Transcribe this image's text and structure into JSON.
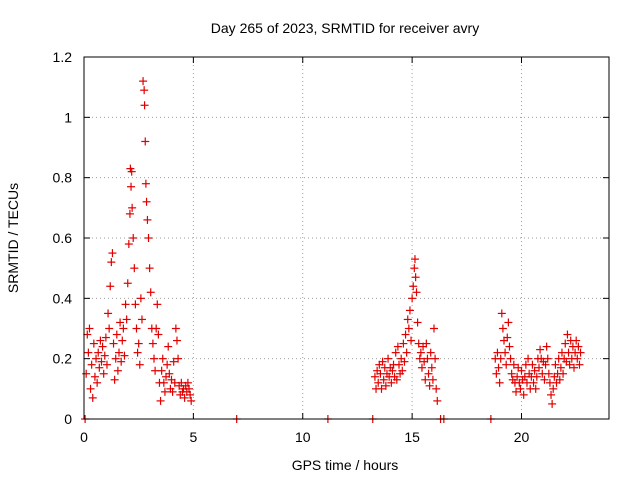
{
  "chart_data": {
    "type": "scatter",
    "title": "Day 265 of 2023, SRMTID for receiver avry",
    "xlabel": "GPS time / hours",
    "ylabel": "SRMTID / TECUs",
    "xlim": [
      0,
      24
    ],
    "ylim": [
      0,
      1.2
    ],
    "x_ticks": [
      {
        "value": 0,
        "label": "0"
      },
      {
        "value": 5,
        "label": "5"
      },
      {
        "value": 10,
        "label": "10"
      },
      {
        "value": 15,
        "label": "15"
      },
      {
        "value": 20,
        "label": "20"
      }
    ],
    "y_ticks": [
      {
        "value": 0,
        "label": "0"
      },
      {
        "value": 0.2,
        "label": "0.2"
      },
      {
        "value": 0.4,
        "label": "0.4"
      },
      {
        "value": 0.6,
        "label": "0.6"
      },
      {
        "value": 0.8,
        "label": "0.8"
      },
      {
        "value": 1.0,
        "label": "1"
      },
      {
        "value": 1.2,
        "label": "1.2"
      }
    ],
    "grid": true,
    "marker": "+",
    "marker_color": "#e00000",
    "series": [
      {
        "name": "SRMTID",
        "points": [
          [
            0.05,
            0.0
          ],
          [
            0.1,
            0.15
          ],
          [
            0.15,
            0.28
          ],
          [
            0.2,
            0.22
          ],
          [
            0.25,
            0.3
          ],
          [
            0.3,
            0.1
          ],
          [
            0.35,
            0.18
          ],
          [
            0.4,
            0.07
          ],
          [
            0.45,
            0.25
          ],
          [
            0.5,
            0.14
          ],
          [
            0.55,
            0.2
          ],
          [
            0.6,
            0.12
          ],
          [
            0.65,
            0.22
          ],
          [
            0.7,
            0.17
          ],
          [
            0.75,
            0.26
          ],
          [
            0.8,
            0.19
          ],
          [
            0.85,
            0.24
          ],
          [
            0.9,
            0.15
          ],
          [
            0.95,
            0.21
          ],
          [
            1.0,
            0.27
          ],
          [
            1.05,
            0.18
          ],
          [
            1.1,
            0.35
          ],
          [
            1.15,
            0.3
          ],
          [
            1.2,
            0.44
          ],
          [
            1.25,
            0.52
          ],
          [
            1.3,
            0.55
          ],
          [
            1.35,
            0.25
          ],
          [
            1.4,
            0.13
          ],
          [
            1.45,
            0.2
          ],
          [
            1.5,
            0.28
          ],
          [
            1.55,
            0.16
          ],
          [
            1.6,
            0.22
          ],
          [
            1.65,
            0.32
          ],
          [
            1.7,
            0.19
          ],
          [
            1.75,
            0.26
          ],
          [
            1.8,
            0.3
          ],
          [
            1.85,
            0.21
          ],
          [
            1.9,
            0.38
          ],
          [
            1.95,
            0.33
          ],
          [
            2.0,
            0.45
          ],
          [
            2.05,
            0.58
          ],
          [
            2.1,
            0.68
          ],
          [
            2.12,
            0.83
          ],
          [
            2.15,
            0.77
          ],
          [
            2.18,
            0.82
          ],
          [
            2.2,
            0.7
          ],
          [
            2.25,
            0.6
          ],
          [
            2.3,
            0.5
          ],
          [
            2.35,
            0.38
          ],
          [
            2.4,
            0.3
          ],
          [
            2.45,
            0.22
          ],
          [
            2.5,
            0.25
          ],
          [
            2.55,
            0.18
          ],
          [
            2.6,
            0.4
          ],
          [
            2.65,
            0.33
          ],
          [
            2.7,
            1.12
          ],
          [
            2.75,
            1.09
          ],
          [
            2.77,
            1.04
          ],
          [
            2.8,
            0.92
          ],
          [
            2.83,
            0.78
          ],
          [
            2.86,
            0.72
          ],
          [
            2.9,
            0.66
          ],
          [
            2.95,
            0.6
          ],
          [
            3.0,
            0.5
          ],
          [
            3.05,
            0.42
          ],
          [
            3.1,
            0.3
          ],
          [
            3.15,
            0.25
          ],
          [
            3.2,
            0.2
          ],
          [
            3.25,
            0.16
          ],
          [
            3.3,
            0.3
          ],
          [
            3.35,
            0.38
          ],
          [
            3.4,
            0.28
          ],
          [
            3.45,
            0.12
          ],
          [
            3.5,
            0.06
          ],
          [
            3.55,
            0.16
          ],
          [
            3.6,
            0.2
          ],
          [
            3.65,
            0.12
          ],
          [
            3.7,
            0.09
          ],
          [
            3.75,
            0.14
          ],
          [
            3.8,
            0.18
          ],
          [
            3.85,
            0.24
          ],
          [
            3.9,
            0.15
          ],
          [
            3.95,
            0.1
          ],
          [
            4.0,
            0.13
          ],
          [
            4.05,
            0.09
          ],
          [
            4.1,
            0.19
          ],
          [
            4.15,
            0.12
          ],
          [
            4.2,
            0.3
          ],
          [
            4.25,
            0.26
          ],
          [
            4.3,
            0.2
          ],
          [
            4.35,
            0.11
          ],
          [
            4.4,
            0.08
          ],
          [
            4.45,
            0.12
          ],
          [
            4.5,
            0.09
          ],
          [
            4.55,
            0.1
          ],
          [
            4.6,
            0.07
          ],
          [
            4.65,
            0.11
          ],
          [
            4.7,
            0.09
          ],
          [
            4.75,
            0.12
          ],
          [
            4.8,
            0.1
          ],
          [
            4.85,
            0.08
          ],
          [
            4.9,
            0.06
          ],
          [
            6.98,
            0.0
          ],
          [
            11.15,
            0.0
          ],
          [
            13.2,
            0.0
          ],
          [
            13.3,
            0.14
          ],
          [
            13.35,
            0.1
          ],
          [
            13.4,
            0.16
          ],
          [
            13.45,
            0.12
          ],
          [
            13.5,
            0.18
          ],
          [
            13.55,
            0.15
          ],
          [
            13.6,
            0.1
          ],
          [
            13.65,
            0.19
          ],
          [
            13.7,
            0.13
          ],
          [
            13.75,
            0.17
          ],
          [
            13.8,
            0.11
          ],
          [
            13.85,
            0.15
          ],
          [
            13.9,
            0.2
          ],
          [
            13.95,
            0.14
          ],
          [
            14.0,
            0.17
          ],
          [
            14.05,
            0.12
          ],
          [
            14.1,
            0.16
          ],
          [
            14.15,
            0.18
          ],
          [
            14.2,
            0.14
          ],
          [
            14.25,
            0.22
          ],
          [
            14.3,
            0.13
          ],
          [
            14.35,
            0.24
          ],
          [
            14.4,
            0.18
          ],
          [
            14.45,
            0.15
          ],
          [
            14.5,
            0.2
          ],
          [
            14.55,
            0.16
          ],
          [
            14.6,
            0.25
          ],
          [
            14.65,
            0.19
          ],
          [
            14.7,
            0.28
          ],
          [
            14.75,
            0.22
          ],
          [
            14.8,
            0.33
          ],
          [
            14.85,
            0.3
          ],
          [
            14.9,
            0.36
          ],
          [
            14.95,
            0.26
          ],
          [
            15.0,
            0.4
          ],
          [
            15.05,
            0.44
          ],
          [
            15.1,
            0.5
          ],
          [
            15.13,
            0.53
          ],
          [
            15.16,
            0.47
          ],
          [
            15.2,
            0.42
          ],
          [
            15.25,
            0.32
          ],
          [
            15.3,
            0.25
          ],
          [
            15.35,
            0.2
          ],
          [
            15.4,
            0.22
          ],
          [
            15.45,
            0.17
          ],
          [
            15.5,
            0.24
          ],
          [
            15.55,
            0.19
          ],
          [
            15.6,
            0.13
          ],
          [
            15.65,
            0.25
          ],
          [
            15.7,
            0.2
          ],
          [
            15.75,
            0.15
          ],
          [
            15.8,
            0.11
          ],
          [
            15.85,
            0.22
          ],
          [
            15.9,
            0.17
          ],
          [
            15.95,
            0.13
          ],
          [
            16.0,
            0.3
          ],
          [
            16.05,
            0.2
          ],
          [
            16.1,
            0.1
          ],
          [
            16.15,
            0.06
          ],
          [
            16.3,
            0.0
          ],
          [
            16.45,
            0.0
          ],
          [
            18.6,
            0.0
          ],
          [
            18.8,
            0.2
          ],
          [
            18.85,
            0.15
          ],
          [
            18.9,
            0.22
          ],
          [
            18.95,
            0.17
          ],
          [
            19.0,
            0.12
          ],
          [
            19.05,
            0.2
          ],
          [
            19.1,
            0.35
          ],
          [
            19.15,
            0.3
          ],
          [
            19.2,
            0.26
          ],
          [
            19.25,
            0.22
          ],
          [
            19.3,
            0.18
          ],
          [
            19.35,
            0.27
          ],
          [
            19.4,
            0.32
          ],
          [
            19.45,
            0.24
          ],
          [
            19.5,
            0.2
          ],
          [
            19.55,
            0.15
          ],
          [
            19.6,
            0.13
          ],
          [
            19.65,
            0.18
          ],
          [
            19.7,
            0.12
          ],
          [
            19.75,
            0.09
          ],
          [
            19.8,
            0.14
          ],
          [
            19.85,
            0.17
          ],
          [
            19.9,
            0.12
          ],
          [
            19.95,
            0.1
          ],
          [
            20.0,
            0.16
          ],
          [
            20.05,
            0.13
          ],
          [
            20.1,
            0.08
          ],
          [
            20.15,
            0.14
          ],
          [
            20.2,
            0.18
          ],
          [
            20.25,
            0.12
          ],
          [
            20.3,
            0.2
          ],
          [
            20.35,
            0.15
          ],
          [
            20.4,
            0.1
          ],
          [
            20.45,
            0.14
          ],
          [
            20.5,
            0.18
          ],
          [
            20.55,
            0.12
          ],
          [
            20.6,
            0.16
          ],
          [
            20.65,
            0.1
          ],
          [
            20.7,
            0.14
          ],
          [
            20.75,
            0.2
          ],
          [
            20.8,
            0.17
          ],
          [
            20.85,
            0.23
          ],
          [
            20.9,
            0.2
          ],
          [
            20.95,
            0.15
          ],
          [
            21.0,
            0.19
          ],
          [
            21.05,
            0.13
          ],
          [
            21.1,
            0.18
          ],
          [
            21.15,
            0.24
          ],
          [
            21.2,
            0.2
          ],
          [
            21.25,
            0.15
          ],
          [
            21.3,
            0.12
          ],
          [
            21.35,
            0.08
          ],
          [
            21.4,
            0.05
          ],
          [
            21.45,
            0.1
          ],
          [
            21.5,
            0.14
          ],
          [
            21.55,
            0.18
          ],
          [
            21.6,
            0.12
          ],
          [
            21.65,
            0.15
          ],
          [
            21.7,
            0.2
          ],
          [
            21.75,
            0.13
          ],
          [
            21.8,
            0.17
          ],
          [
            21.85,
            0.22
          ],
          [
            21.9,
            0.15
          ],
          [
            21.95,
            0.2
          ],
          [
            22.0,
            0.25
          ],
          [
            22.05,
            0.19
          ],
          [
            22.1,
            0.28
          ],
          [
            22.15,
            0.22
          ],
          [
            22.2,
            0.18
          ],
          [
            22.25,
            0.26
          ],
          [
            22.3,
            0.2
          ],
          [
            22.35,
            0.24
          ],
          [
            22.4,
            0.17
          ],
          [
            22.45,
            0.22
          ],
          [
            22.5,
            0.26
          ],
          [
            22.55,
            0.2
          ],
          [
            22.6,
            0.24
          ],
          [
            22.65,
            0.18
          ],
          [
            22.7,
            0.22
          ]
        ]
      }
    ]
  }
}
